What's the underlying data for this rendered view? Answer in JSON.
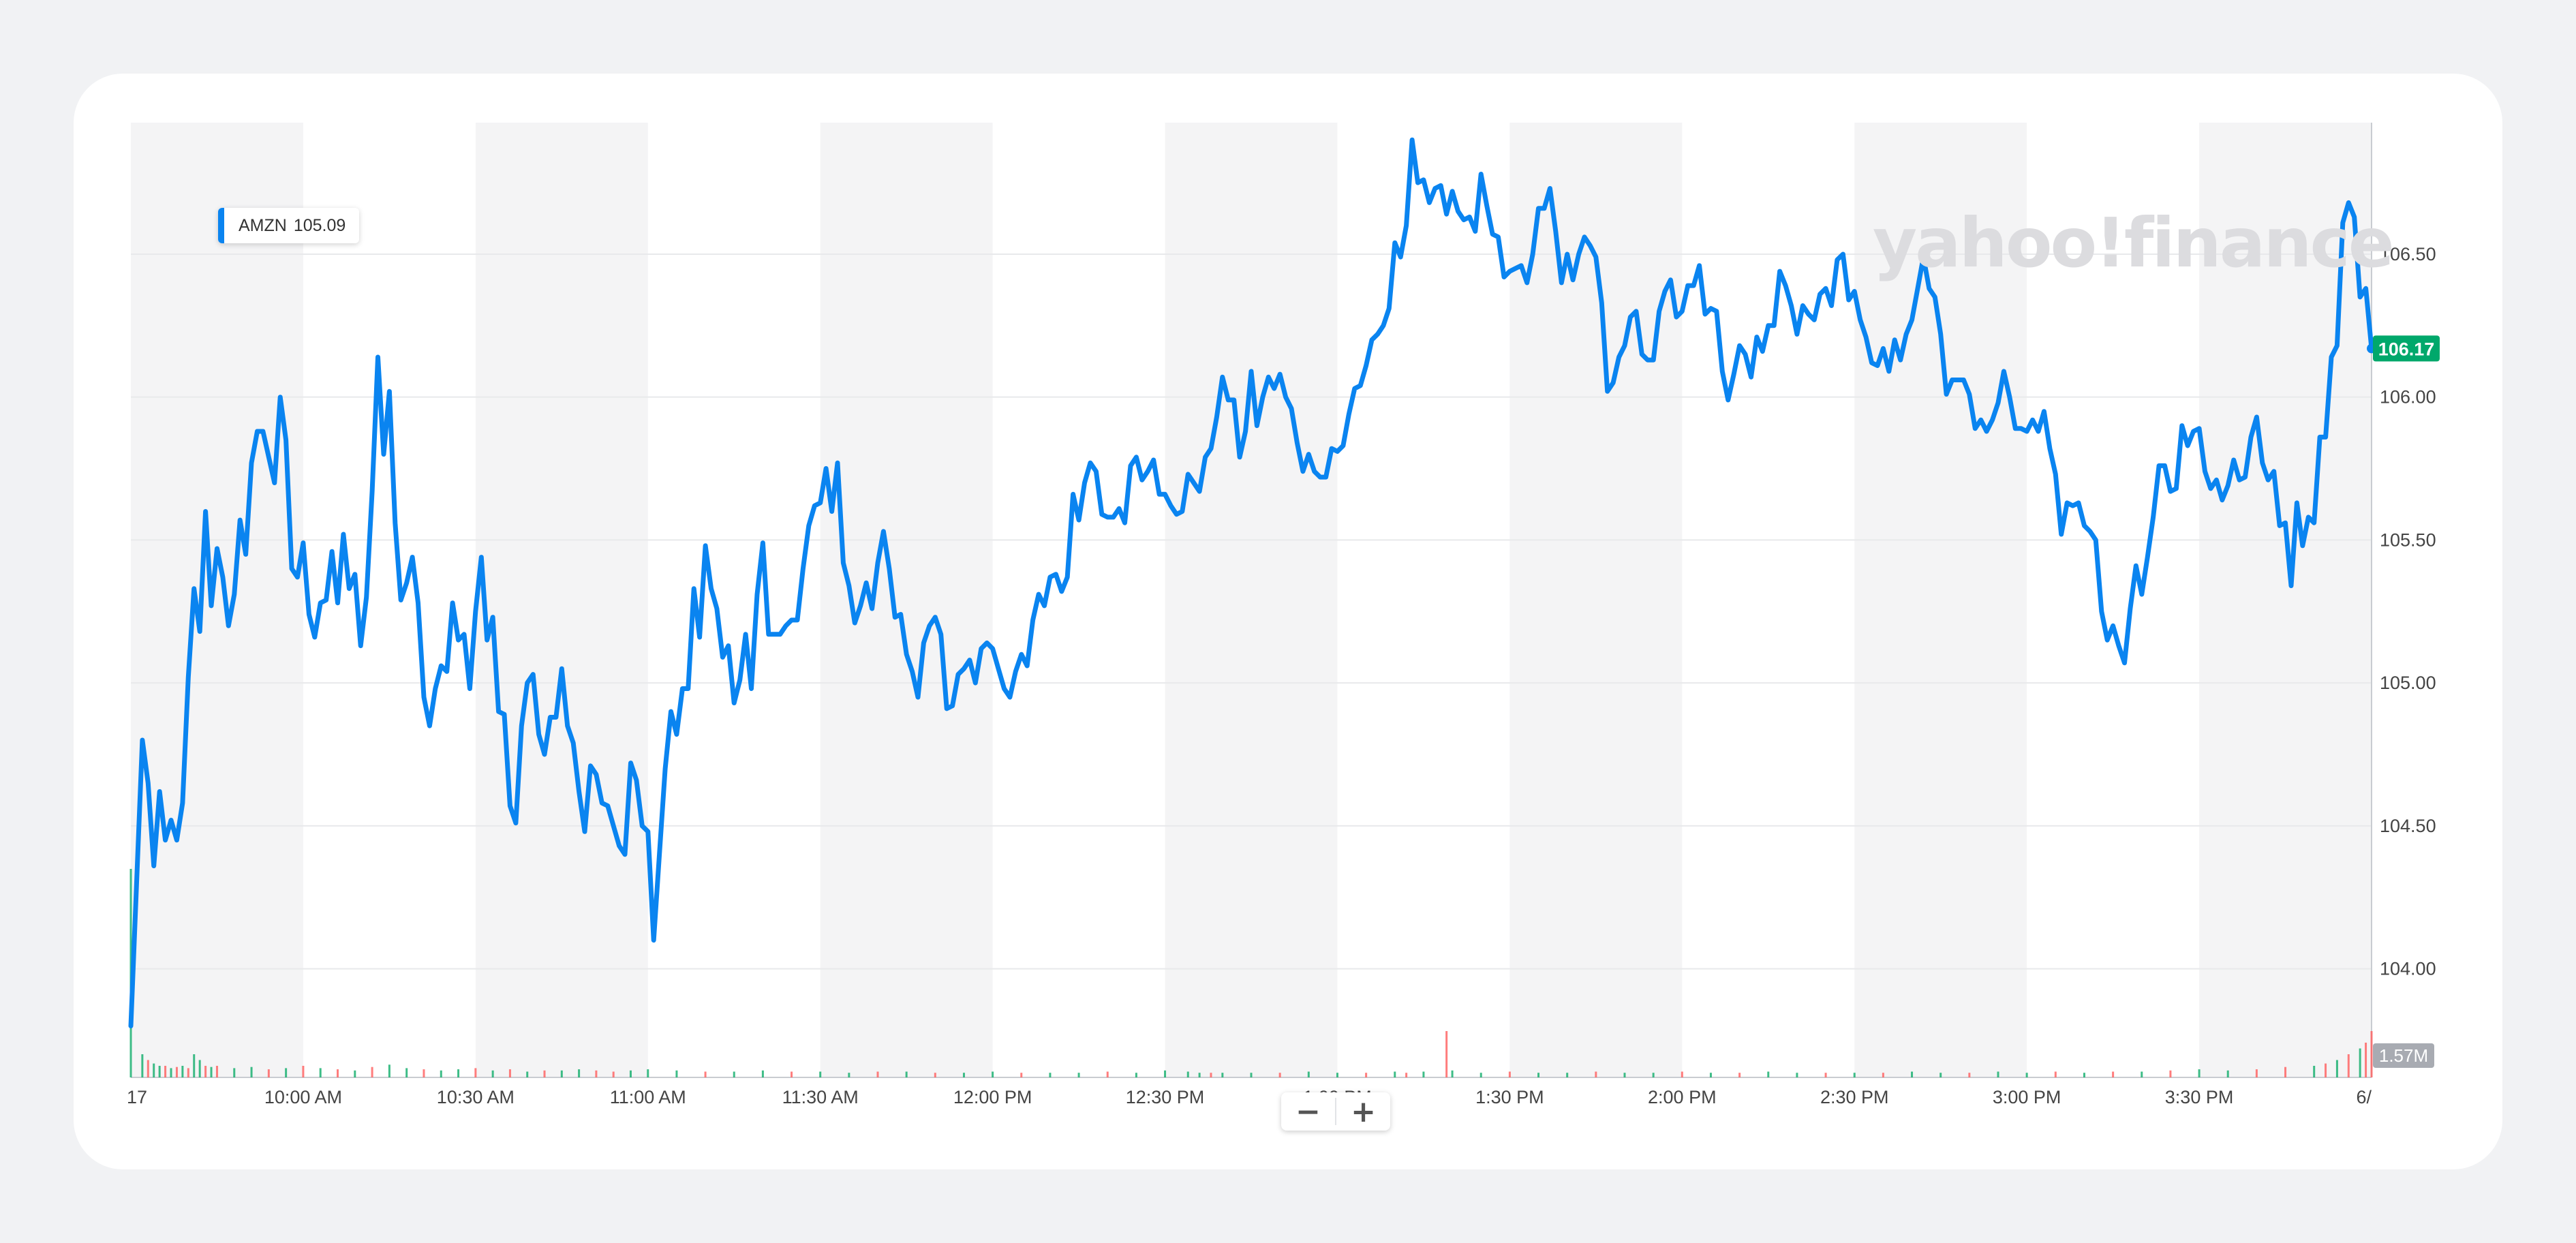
{
  "watermark": "yahoo!finance",
  "zoom": {
    "minus": "−",
    "plus": "+"
  },
  "chart_data": {
    "type": "line",
    "ticker": "AMZN",
    "legend_value": "105.09",
    "last_price_label": "106.17",
    "volume_label": "1.57M",
    "colors": {
      "line": "#0a84f0",
      "last_price_badge": "#00a86b",
      "volume_up": "#0ead69",
      "volume_down": "#ff5c5c",
      "band": "#f4f4f5",
      "volume_badge": "#a8abb2"
    },
    "grid": true,
    "ylim": [
      103.62,
      106.96
    ],
    "yticks": [
      "106.50",
      "106.00",
      "105.50",
      "105.00",
      "104.50",
      "104.00"
    ],
    "x_range_minutes": [
      0,
      390
    ],
    "xticks": [
      {
        "t": 0,
        "label": "17"
      },
      {
        "t": 30,
        "label": "10:00 AM"
      },
      {
        "t": 60,
        "label": "10:30 AM"
      },
      {
        "t": 90,
        "label": "11:00 AM"
      },
      {
        "t": 120,
        "label": "11:30 AM"
      },
      {
        "t": 150,
        "label": "12:00 PM"
      },
      {
        "t": 180,
        "label": "12:30 PM"
      },
      {
        "t": 210,
        "label": "1:00 PM"
      },
      {
        "t": 240,
        "label": "1:30 PM"
      },
      {
        "t": 270,
        "label": "2:00 PM"
      },
      {
        "t": 300,
        "label": "2:30 PM"
      },
      {
        "t": 330,
        "label": "3:00 PM"
      },
      {
        "t": 360,
        "label": "3:30 PM"
      },
      {
        "t": 390,
        "label": "6/"
      }
    ],
    "series": [
      {
        "x": [
          0,
          2,
          3,
          4,
          5,
          6,
          7,
          8,
          9,
          10,
          11,
          12,
          13,
          14,
          15,
          16,
          17,
          18,
          19,
          20,
          21,
          22,
          23,
          25,
          26,
          27,
          28,
          29,
          30,
          31,
          32,
          33,
          34,
          35,
          36,
          37,
          38,
          39,
          40,
          41,
          42,
          43,
          44,
          45,
          46,
          47,
          48,
          49,
          50,
          51,
          52,
          53,
          54,
          55,
          56,
          57,
          58,
          59,
          60,
          61,
          62,
          63,
          64,
          65,
          66,
          67,
          68,
          69,
          70,
          71,
          72,
          73,
          74,
          75,
          76,
          77,
          78,
          79,
          80,
          81,
          82,
          83,
          84,
          85,
          86,
          87,
          88,
          89,
          90,
          91,
          92,
          93,
          94,
          95,
          96,
          97,
          98,
          99,
          100,
          101,
          102,
          103,
          104,
          105,
          106,
          107,
          108,
          109,
          110,
          111,
          112,
          113,
          114,
          115,
          116,
          117,
          118,
          119,
          120,
          121,
          122,
          123,
          124,
          125,
          126,
          127,
          128,
          129,
          130,
          131,
          132,
          133,
          134,
          135,
          136,
          137,
          138,
          139,
          140,
          141,
          142,
          143,
          144,
          145,
          146,
          147,
          148,
          149,
          150,
          151,
          152,
          153,
          154,
          155,
          156,
          157,
          158,
          159,
          160,
          161,
          162,
          163,
          164,
          165,
          166,
          167,
          168,
          169,
          170,
          171,
          172,
          173,
          174,
          175,
          176,
          177,
          178,
          179,
          180,
          181,
          182,
          183,
          184,
          185,
          186,
          187,
          188,
          189,
          190,
          191,
          192,
          193,
          194,
          195,
          196,
          197,
          198,
          199,
          200,
          201,
          202,
          203,
          204,
          205,
          206,
          207,
          208,
          209,
          210,
          211,
          212,
          213,
          214,
          215,
          216,
          217,
          218,
          219,
          220,
          221,
          222,
          223,
          224,
          225,
          226,
          227,
          228,
          229,
          230,
          231,
          232,
          233,
          234,
          235,
          236,
          237,
          238,
          239,
          240,
          241,
          242,
          243,
          244,
          245,
          246,
          247,
          248,
          249,
          250,
          251,
          252,
          253,
          254,
          255,
          256,
          257,
          258,
          259,
          260,
          261,
          262,
          263,
          264,
          265,
          266,
          267,
          268,
          269,
          270,
          271,
          272,
          273,
          274,
          275,
          276,
          277,
          278,
          279,
          280,
          281,
          282,
          283,
          284,
          285,
          286,
          287,
          288,
          289,
          290,
          291,
          292,
          293,
          294,
          295,
          296,
          297,
          298,
          299,
          300,
          301,
          302,
          303,
          304,
          305,
          306,
          307,
          308,
          309,
          310,
          311,
          312,
          313,
          314,
          315,
          316,
          317,
          318,
          319,
          320,
          321,
          322,
          323,
          324,
          325,
          326,
          327,
          328,
          329,
          330,
          331,
          332,
          333,
          334,
          335,
          336,
          337,
          338,
          339,
          340,
          341,
          342,
          343,
          344,
          345,
          346,
          347,
          348,
          349,
          350,
          351,
          352,
          353,
          354,
          355,
          356,
          357,
          358,
          359,
          360,
          361,
          362,
          363,
          364,
          365,
          366,
          367,
          368,
          369,
          370,
          371,
          372,
          373,
          374,
          375,
          376,
          377,
          378,
          379,
          380,
          381,
          382,
          383,
          384,
          385,
          386,
          387,
          388,
          389,
          390
        ],
        "y": [
          103.8,
          104.8,
          104.65,
          104.36,
          104.62,
          104.45,
          104.52,
          104.45,
          104.58,
          105.02,
          105.33,
          105.18,
          105.6,
          105.27,
          105.47,
          105.37,
          105.2,
          105.31,
          105.57,
          105.45,
          105.77,
          105.88,
          105.88,
          105.7,
          106.0,
          105.85,
          105.4,
          105.37,
          105.49,
          105.24,
          105.16,
          105.28,
          105.29,
          105.46,
          105.28,
          105.52,
          105.33,
          105.38,
          105.13,
          105.3,
          105.67,
          106.14,
          105.8,
          106.02,
          105.56,
          105.29,
          105.35,
          105.44,
          105.28,
          104.95,
          104.85,
          104.98,
          105.06,
          105.04,
          105.28,
          105.15,
          105.17,
          104.98,
          105.25,
          105.44,
          105.15,
          105.23,
          104.9,
          104.89,
          104.57,
          104.51,
          104.85,
          105.0,
          105.03,
          104.82,
          104.75,
          104.88,
          104.88,
          105.05,
          104.85,
          104.79,
          104.62,
          104.48,
          104.71,
          104.68,
          104.58,
          104.57,
          104.5,
          104.43,
          104.4,
          104.72,
          104.66,
          104.5,
          104.48,
          104.1,
          104.4,
          104.7,
          104.9,
          104.82,
          104.98,
          104.98,
          105.33,
          105.16,
          105.48,
          105.33,
          105.26,
          105.09,
          105.13,
          104.93,
          105.01,
          105.17,
          104.98,
          105.31,
          105.49,
          105.17,
          105.17,
          105.17,
          105.2,
          105.22,
          105.22,
          105.4,
          105.55,
          105.62,
          105.63,
          105.75,
          105.6,
          105.77,
          105.42,
          105.34,
          105.21,
          105.27,
          105.35,
          105.26,
          105.42,
          105.53,
          105.4,
          105.23,
          105.24,
          105.1,
          105.04,
          104.95,
          105.14,
          105.2,
          105.23,
          105.17,
          104.91,
          104.92,
          105.03,
          105.05,
          105.08,
          105.0,
          105.12,
          105.14,
          105.12,
          105.05,
          104.98,
          104.95,
          105.04,
          105.1,
          105.06,
          105.22,
          105.31,
          105.27,
          105.37,
          105.38,
          105.32,
          105.37,
          105.66,
          105.57,
          105.7,
          105.77,
          105.74,
          105.59,
          105.58,
          105.58,
          105.61,
          105.56,
          105.76,
          105.79,
          105.71,
          105.74,
          105.78,
          105.66,
          105.66,
          105.62,
          105.59,
          105.6,
          105.73,
          105.7,
          105.67,
          105.79,
          105.82,
          105.93,
          106.07,
          105.99,
          105.99,
          105.79,
          105.88,
          106.09,
          105.9,
          106.0,
          106.07,
          106.03,
          106.08,
          106.0,
          105.96,
          105.84,
          105.74,
          105.8,
          105.74,
          105.72,
          105.72,
          105.82,
          105.81,
          105.83,
          105.94,
          106.03,
          106.04,
          106.11,
          106.2,
          106.22,
          106.25,
          106.31,
          106.54,
          106.49,
          106.6,
          106.9,
          106.75,
          106.76,
          106.68,
          106.73,
          106.74,
          106.64,
          106.72,
          106.65,
          106.62,
          106.63,
          106.58,
          106.78,
          106.67,
          106.57,
          106.56,
          106.42,
          106.44,
          106.45,
          106.46,
          106.4,
          106.5,
          106.66,
          106.66,
          106.73,
          106.58,
          106.4,
          106.5,
          106.41,
          106.5,
          106.56,
          106.53,
          106.49,
          106.33,
          106.02,
          106.05,
          106.14,
          106.18,
          106.28,
          106.3,
          106.15,
          106.13,
          106.13,
          106.3,
          106.37,
          106.41,
          106.28,
          106.3,
          106.39,
          106.39,
          106.46,
          106.29,
          106.31,
          106.3,
          106.09,
          105.99,
          106.08,
          106.18,
          106.15,
          106.07,
          106.21,
          106.16,
          106.25,
          106.25,
          106.44,
          106.39,
          106.32,
          106.22,
          106.32,
          106.29,
          106.27,
          106.36,
          106.38,
          106.32,
          106.48,
          106.5,
          106.34,
          106.37,
          106.27,
          106.21,
          106.12,
          106.11,
          106.17,
          106.09,
          106.2,
          106.13,
          106.22,
          106.27,
          106.38,
          106.49,
          106.38,
          106.35,
          106.22,
          106.01,
          106.06,
          106.06,
          106.06,
          106.01,
          105.89,
          105.92,
          105.88,
          105.92,
          105.98,
          106.09,
          106.0,
          105.89,
          105.89,
          105.88,
          105.92,
          105.88,
          105.95,
          105.82,
          105.73,
          105.52,
          105.63,
          105.62,
          105.63,
          105.55,
          105.53,
          105.5,
          105.25,
          105.15,
          105.2,
          105.13,
          105.07,
          105.26,
          105.41,
          105.31,
          105.44,
          105.58,
          105.76,
          105.76,
          105.67,
          105.68,
          105.9,
          105.83,
          105.88,
          105.89,
          105.74,
          105.68,
          105.71,
          105.64,
          105.69,
          105.78,
          105.71,
          105.72,
          105.86,
          105.93,
          105.77,
          105.71,
          105.74,
          105.55,
          105.56,
          105.34,
          105.63,
          105.48,
          105.58,
          105.56,
          105.86,
          105.86,
          106.14,
          106.18,
          106.61,
          106.68,
          106.63,
          106.35,
          106.38,
          106.17
        ]
      }
    ],
    "volume": {
      "t": [
        0,
        2,
        3,
        4,
        5,
        6,
        7,
        8,
        9,
        10,
        11,
        12,
        13,
        14,
        15,
        18,
        21,
        24,
        27,
        30,
        33,
        36,
        39,
        42,
        45,
        48,
        51,
        54,
        57,
        60,
        63,
        66,
        69,
        72,
        75,
        78,
        81,
        84,
        87,
        90,
        95,
        100,
        105,
        110,
        115,
        120,
        125,
        130,
        135,
        140,
        145,
        150,
        155,
        160,
        165,
        170,
        175,
        180,
        184,
        186,
        188,
        190,
        195,
        200,
        205,
        210,
        215,
        220,
        222,
        225,
        229,
        230,
        235,
        240,
        245,
        250,
        255,
        260,
        265,
        270,
        275,
        280,
        285,
        290,
        295,
        300,
        305,
        310,
        315,
        320,
        325,
        330,
        335,
        340,
        345,
        350,
        355,
        360,
        365,
        370,
        375,
        380,
        382,
        384,
        386,
        388,
        389,
        390
      ],
      "v": [
        0.18,
        0.02,
        0.015,
        0.012,
        0.01,
        0.01,
        0.008,
        0.009,
        0.01,
        0.008,
        0.02,
        0.015,
        0.01,
        0.009,
        0.01,
        0.008,
        0.009,
        0.007,
        0.008,
        0.01,
        0.008,
        0.007,
        0.006,
        0.009,
        0.011,
        0.008,
        0.007,
        0.006,
        0.007,
        0.008,
        0.006,
        0.007,
        0.005,
        0.006,
        0.006,
        0.007,
        0.006,
        0.005,
        0.006,
        0.007,
        0.006,
        0.005,
        0.005,
        0.006,
        0.005,
        0.005,
        0.004,
        0.005,
        0.005,
        0.004,
        0.004,
        0.005,
        0.004,
        0.004,
        0.004,
        0.005,
        0.004,
        0.006,
        0.005,
        0.004,
        0.004,
        0.004,
        0.004,
        0.004,
        0.005,
        0.004,
        0.004,
        0.005,
        0.004,
        0.005,
        0.04,
        0.006,
        0.004,
        0.005,
        0.004,
        0.004,
        0.005,
        0.004,
        0.004,
        0.005,
        0.004,
        0.004,
        0.005,
        0.004,
        0.004,
        0.004,
        0.004,
        0.005,
        0.004,
        0.004,
        0.005,
        0.004,
        0.005,
        0.004,
        0.005,
        0.005,
        0.006,
        0.007,
        0.006,
        0.007,
        0.009,
        0.01,
        0.012,
        0.015,
        0.02,
        0.025,
        0.03,
        0.04
      ],
      "up": [
        1,
        1,
        0,
        1,
        1,
        0,
        1,
        0,
        1,
        0,
        1,
        1,
        0,
        1,
        0,
        1,
        1,
        0,
        1,
        0,
        1,
        0,
        1,
        0,
        1,
        1,
        0,
        1,
        1,
        0,
        1,
        0,
        1,
        0,
        1,
        1,
        0,
        0,
        1,
        1,
        1,
        0,
        1,
        1,
        0,
        1,
        1,
        0,
        1,
        0,
        1,
        1,
        0,
        1,
        1,
        0,
        1,
        1,
        1,
        1,
        0,
        1,
        1,
        0,
        1,
        1,
        0,
        1,
        0,
        1,
        0,
        1,
        1,
        0,
        1,
        1,
        0,
        1,
        1,
        0,
        1,
        0,
        1,
        1,
        0,
        1,
        0,
        1,
        1,
        0,
        1,
        1,
        0,
        1,
        0,
        1,
        0,
        1,
        1,
        0,
        0,
        1,
        0,
        1,
        0,
        1,
        0,
        0
      ]
    }
  }
}
